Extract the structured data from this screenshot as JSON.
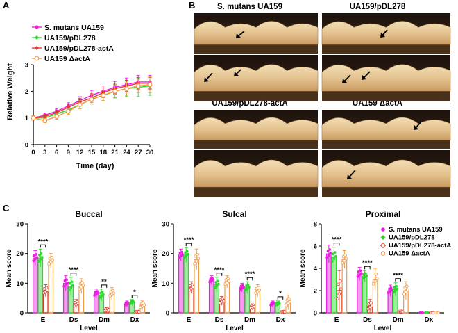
{
  "panel_letters": {
    "a": "A",
    "b": "B",
    "c": "C"
  },
  "colors": {
    "ua159": "#e81fe0",
    "pdl278": "#2cd62c",
    "acta_plasmid": "#e23a2a",
    "delta_acta": "#f29a44"
  },
  "chart_data": [
    {
      "id": "growth",
      "type": "line",
      "title": "",
      "xlabel": "Time (day)",
      "ylabel": "Relative Weight",
      "xlim": [
        0,
        30
      ],
      "ylim": [
        0,
        3
      ],
      "x_ticks": [
        "0",
        "3",
        "6",
        "9",
        "12",
        "15",
        "18",
        "21",
        "24",
        "27",
        "30"
      ],
      "y_ticks": [
        "0",
        "1",
        "2",
        "3"
      ],
      "x": [
        0,
        3,
        6,
        9,
        12,
        15,
        18,
        21,
        24,
        27,
        30
      ],
      "legend": [
        "S. mutans UA159",
        "UA159/pDL278",
        "UA159/pDL278-actA",
        "UA159 ΔactA"
      ],
      "series": [
        {
          "name": "S. mutans UA159",
          "values": [
            1.0,
            1.1,
            1.25,
            1.45,
            1.65,
            1.85,
            2.0,
            2.15,
            2.25,
            2.35,
            2.35
          ],
          "errors": [
            0.08,
            0.08,
            0.1,
            0.12,
            0.15,
            0.18,
            0.2,
            0.22,
            0.25,
            0.25,
            0.25
          ]
        },
        {
          "name": "UA159/pDL278",
          "values": [
            1.0,
            1.0,
            1.15,
            1.3,
            1.5,
            1.7,
            1.85,
            2.0,
            2.1,
            2.15,
            2.2
          ],
          "errors": [
            0.08,
            0.08,
            0.1,
            0.12,
            0.15,
            0.18,
            0.2,
            0.25,
            0.3,
            0.35,
            0.35
          ]
        },
        {
          "name": "UA159/pDL278-actA",
          "values": [
            1.0,
            1.05,
            1.2,
            1.4,
            1.6,
            1.75,
            1.95,
            2.1,
            2.2,
            2.3,
            2.3
          ],
          "errors": [
            0.08,
            0.08,
            0.1,
            0.12,
            0.14,
            0.16,
            0.18,
            0.2,
            0.22,
            0.22,
            0.22
          ]
        },
        {
          "name": "UA159 ΔactA",
          "values": [
            1.0,
            0.9,
            1.05,
            1.25,
            1.5,
            1.7,
            1.85,
            2.0,
            2.1,
            2.2,
            2.25
          ],
          "errors": [
            0.08,
            0.08,
            0.1,
            0.12,
            0.15,
            0.18,
            0.2,
            0.22,
            0.25,
            0.25,
            0.3
          ]
        }
      ]
    },
    {
      "id": "buccal",
      "type": "bar",
      "title": "Buccal",
      "xlabel": "Level",
      "ylabel": "Mean score",
      "ylim": [
        0,
        30
      ],
      "y_ticks": [
        "0",
        "10",
        "20",
        "30"
      ],
      "categories": [
        "E",
        "Ds",
        "Dm",
        "Dx"
      ],
      "series": [
        {
          "name": "S. mutans UA159",
          "values": [
            18.5,
            10.0,
            6.5,
            3.0
          ],
          "errors": [
            2.5,
            2.5,
            1.5,
            1.0
          ]
        },
        {
          "name": "UA159/pDL278",
          "values": [
            18.5,
            9.0,
            6.0,
            3.5
          ],
          "errors": [
            3.0,
            3.0,
            2.0,
            1.0
          ]
        },
        {
          "name": "UA159/pDL278-actA",
          "values": [
            7.5,
            3.0,
            1.0,
            0.3
          ],
          "errors": [
            2.0,
            1.5,
            0.8,
            0.3
          ]
        },
        {
          "name": "UA159 ΔactA",
          "values": [
            17.5,
            9.0,
            6.5,
            2.5
          ],
          "errors": [
            2.5,
            2.5,
            2.0,
            1.5
          ]
        }
      ],
      "significance": [
        {
          "category": "E",
          "label": "****"
        },
        {
          "category": "Ds",
          "label": "****"
        },
        {
          "category": "Dm",
          "label": "**"
        },
        {
          "category": "Dx",
          "label": "*"
        }
      ]
    },
    {
      "id": "sulcal",
      "type": "bar",
      "title": "Sulcal",
      "xlabel": "Level",
      "ylabel": "Mean score",
      "ylim": [
        0,
        30
      ],
      "y_ticks": [
        "0",
        "10",
        "20",
        "30"
      ],
      "categories": [
        "E",
        "Ds",
        "Dm",
        "Dx"
      ],
      "series": [
        {
          "name": "S. mutans UA159",
          "values": [
            19.5,
            11.0,
            8.5,
            3.0
          ],
          "errors": [
            2.0,
            1.5,
            1.5,
            1.0
          ]
        },
        {
          "name": "UA159/pDL278",
          "values": [
            19.5,
            9.5,
            8.5,
            3.0
          ],
          "errors": [
            2.5,
            2.5,
            2.0,
            1.0
          ]
        },
        {
          "name": "UA159/pDL278-actA",
          "values": [
            8.5,
            4.0,
            2.0,
            0.3
          ],
          "errors": [
            2.0,
            1.5,
            1.0,
            0.3
          ]
        },
        {
          "name": "UA159 ΔactA",
          "values": [
            18.0,
            10.5,
            7.5,
            3.5
          ],
          "errors": [
            3.5,
            2.0,
            2.0,
            2.5
          ]
        }
      ],
      "significance": [
        {
          "category": "E",
          "label": "****"
        },
        {
          "category": "Ds",
          "label": "****"
        },
        {
          "category": "Dm",
          "label": "****"
        },
        {
          "category": "Dx",
          "label": "*"
        }
      ]
    },
    {
      "id": "proximal",
      "type": "bar",
      "title": "Proximal",
      "xlabel": "Level",
      "ylabel": "Mean score",
      "ylim": [
        0,
        8
      ],
      "y_ticks": [
        "0",
        "2",
        "4",
        "6",
        "8"
      ],
      "categories": [
        "E",
        "Ds",
        "Dm",
        "Dx"
      ],
      "series": [
        {
          "name": "S. mutans UA159",
          "values": [
            5.3,
            3.5,
            2.0,
            0.0
          ],
          "errors": [
            0.8,
            0.6,
            0.5,
            0.0
          ]
        },
        {
          "name": "UA159/pDL278",
          "values": [
            5.0,
            3.3,
            2.1,
            0.0
          ],
          "errors": [
            0.9,
            0.5,
            0.6,
            0.0
          ]
        },
        {
          "name": "UA159/pDL278-actA",
          "values": [
            2.0,
            0.6,
            0.1,
            0.0
          ],
          "errors": [
            1.8,
            0.6,
            0.1,
            0.0
          ]
        },
        {
          "name": "UA159 ΔactA",
          "values": [
            4.8,
            3.0,
            2.0,
            0.0
          ],
          "errors": [
            0.8,
            1.0,
            0.8,
            0.0
          ]
        }
      ],
      "significance": [
        {
          "category": "E",
          "label": "****"
        },
        {
          "category": "Ds",
          "label": "****"
        },
        {
          "category": "Dm",
          "label": "****"
        }
      ],
      "legend": [
        "S. mutans UA159",
        "UA159/pDL278",
        "UA159/pDL278-actA",
        "UA159 ΔactA"
      ]
    }
  ],
  "photos": {
    "titles": [
      "S. mutans UA159",
      "UA159/pDL278",
      "UA159/pDL278-actA",
      "UA159 ΔactA"
    ]
  }
}
